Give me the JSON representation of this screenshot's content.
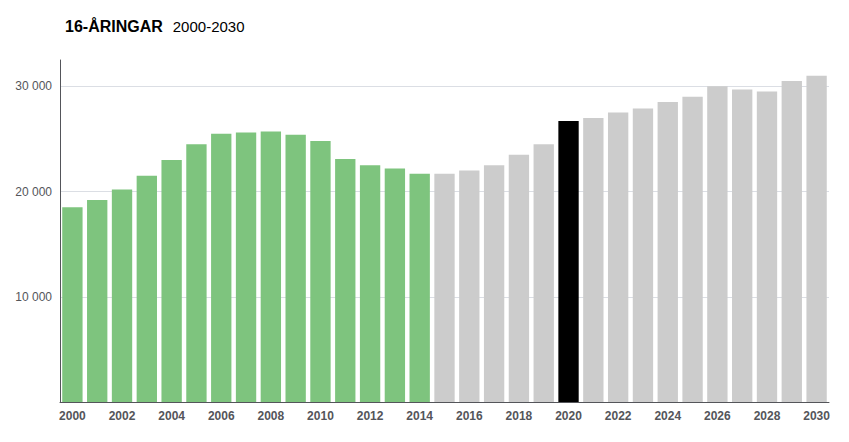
{
  "chart_data": {
    "type": "bar",
    "title": "16-ÅRINGAR",
    "subtitle": "2000-2030",
    "categories": [
      "2000",
      null,
      "2002",
      null,
      "2004",
      null,
      "2006",
      null,
      "2008",
      null,
      "2010",
      null,
      "2012",
      null,
      "2014",
      null,
      "2016",
      null,
      "2018",
      null,
      "2020",
      null,
      "2022",
      null,
      "2024",
      null,
      "2026",
      null,
      "2028",
      null,
      "2030"
    ],
    "values": [
      18500,
      19200,
      20200,
      21500,
      23000,
      24500,
      25500,
      25600,
      25700,
      25400,
      24800,
      23100,
      22500,
      22200,
      21700,
      21700,
      22000,
      22500,
      23500,
      24500,
      26700,
      27000,
      27500,
      27900,
      28500,
      29000,
      30000,
      29700,
      29500,
      30500,
      31000
    ],
    "colors": [
      "#7ec47e",
      "#7ec47e",
      "#7ec47e",
      "#7ec47e",
      "#7ec47e",
      "#7ec47e",
      "#7ec47e",
      "#7ec47e",
      "#7ec47e",
      "#7ec47e",
      "#7ec47e",
      "#7ec47e",
      "#7ec47e",
      "#7ec47e",
      "#7ec47e",
      "#cccccc",
      "#cccccc",
      "#cccccc",
      "#cccccc",
      "#cccccc",
      "#000000",
      "#cccccc",
      "#cccccc",
      "#cccccc",
      "#cccccc",
      "#cccccc",
      "#cccccc",
      "#cccccc",
      "#cccccc",
      "#cccccc",
      "#cccccc"
    ],
    "ylim": [
      0,
      32500
    ],
    "yticks": [
      {
        "value": 10000,
        "label": "10 000"
      },
      {
        "value": 20000,
        "label": "20 000"
      },
      {
        "value": 30000,
        "label": "30 000"
      }
    ],
    "grid": true
  }
}
